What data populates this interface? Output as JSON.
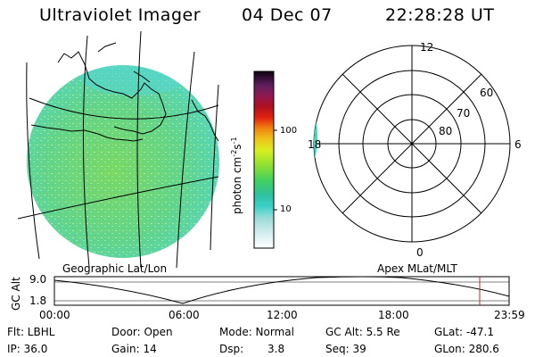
{
  "header": {
    "instrument": "Ultraviolet Imager",
    "date": "04 Dec 07",
    "time": "22:28:28 UT"
  },
  "colorbar": {
    "unit_text": "photon cm",
    "unit_exp1": "-2",
    "unit_s": "s",
    "unit_exp2": "-1",
    "tick_100": "100",
    "tick_10": "10"
  },
  "polar": {
    "mlt_top": "12",
    "mlt_right": "6",
    "mlt_bottom": "0",
    "mlt_left": "18",
    "lat_60": "60",
    "lat_70": "70",
    "lat_80": "80"
  },
  "orbit": {
    "left_title": "Geographic Lat/Lon",
    "right_title": "Apex  MLat/MLT",
    "yaxis_label": "GC Alt",
    "ytick_top": "9.0",
    "ytick_bottom": "1.8",
    "xticks": [
      "00:00",
      "06:00",
      "12:00",
      "18:00",
      "23:59"
    ],
    "marker_color": "#cc2222"
  },
  "footer": {
    "flt": "Flt: LBHL",
    "ip": "IP: 36.0",
    "door": "Door: Open",
    "gain": "Gain: 14",
    "mode": "Mode: Normal",
    "dsp_label": "Dsp:",
    "dsp_value": "3.8",
    "gcalt": "GC Alt: 5.5 Re",
    "seq": "Seq: 39",
    "glat": "GLat: -47.1",
    "glon": "GLon: 280.6"
  },
  "colors": {
    "accent_cyan": "#3fd6c8",
    "accent_green": "#7ee04a"
  }
}
